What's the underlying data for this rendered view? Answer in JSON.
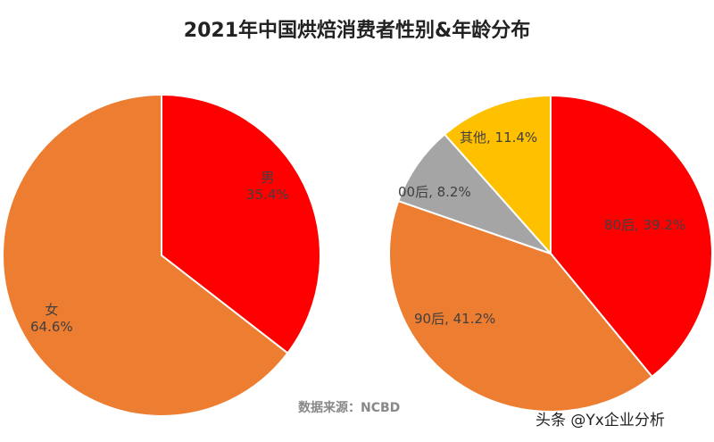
{
  "chart_data": [
    {
      "type": "pie",
      "title": "2021年中国烘焙消费者性别&年龄分布",
      "slices": [
        {
          "label": "男",
          "value": 35.4,
          "display": "35.4%",
          "color": "#ff0000"
        },
        {
          "label": "女",
          "value": 64.6,
          "display": "64.6%",
          "color": "#ed7d31"
        }
      ]
    },
    {
      "type": "pie",
      "slices": [
        {
          "label": "80后",
          "value": 39.2,
          "display": "80后, 39.2%",
          "color": "#ff0000"
        },
        {
          "label": "90后",
          "value": 41.2,
          "display": "90后, 41.2%",
          "color": "#ed7d31"
        },
        {
          "label": "00后",
          "value": 8.2,
          "display": "00后, 8.2%",
          "color": "#a5a5a5"
        },
        {
          "label": "其他",
          "value": 11.4,
          "display": "其他, 11.4%",
          "color": "#ffc000"
        }
      ]
    }
  ],
  "title": "2021年中国烘焙消费者性别&年龄分布",
  "source": "数据来源：NCBD",
  "watermark": "头条 @Yx企业分析"
}
